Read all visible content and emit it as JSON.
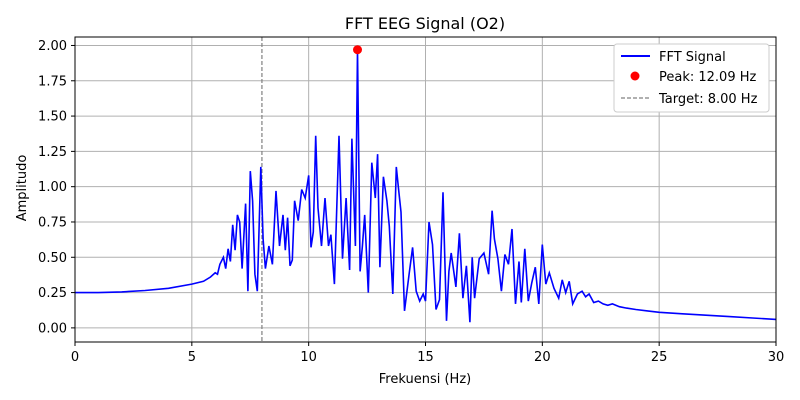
{
  "chart_data": {
    "type": "line",
    "title": "FFT EEG Signal (O2)",
    "xlabel": "Frekuensi (Hz)",
    "ylabel": "Amplitudo",
    "xlim": [
      0,
      30
    ],
    "ylim": [
      -0.1,
      2.06
    ],
    "xticks": [
      0,
      5,
      10,
      15,
      20,
      25,
      30
    ],
    "yticks": [
      0.0,
      0.25,
      0.5,
      0.75,
      1.0,
      1.25,
      1.5,
      1.75,
      2.0
    ],
    "xtick_labels": [
      "0",
      "5",
      "10",
      "15",
      "20",
      "25",
      "30"
    ],
    "ytick_labels": [
      "0.00",
      "0.25",
      "0.50",
      "0.75",
      "1.00",
      "1.25",
      "1.50",
      "1.75",
      "2.00"
    ],
    "grid": true,
    "legend_position": "top-right",
    "series": [
      {
        "name": "FFT Signal",
        "color": "#0000ff",
        "x": [
          0.0,
          1.0,
          2.0,
          3.0,
          4.0,
          5.0,
          5.5,
          5.8,
          6.0,
          6.1,
          6.2,
          6.35,
          6.45,
          6.55,
          6.65,
          6.75,
          6.85,
          6.95,
          7.05,
          7.15,
          7.3,
          7.4,
          7.5,
          7.6,
          7.7,
          7.8,
          7.95,
          8.05,
          8.15,
          8.3,
          8.45,
          8.6,
          8.75,
          8.9,
          9.0,
          9.1,
          9.2,
          9.3,
          9.4,
          9.55,
          9.7,
          9.85,
          10.0,
          10.1,
          10.2,
          10.3,
          10.4,
          10.55,
          10.7,
          10.85,
          10.95,
          11.1,
          11.3,
          11.45,
          11.6,
          11.75,
          11.85,
          12.0,
          12.09,
          12.2,
          12.3,
          12.4,
          12.55,
          12.7,
          12.85,
          12.95,
          13.05,
          13.2,
          13.35,
          13.45,
          13.6,
          13.75,
          13.85,
          13.95,
          14.1,
          14.3,
          14.45,
          14.6,
          14.75,
          14.9,
          15.0,
          15.15,
          15.3,
          15.45,
          15.6,
          15.75,
          15.9,
          16.0,
          16.1,
          16.3,
          16.45,
          16.6,
          16.75,
          16.9,
          17.0,
          17.1,
          17.3,
          17.5,
          17.7,
          17.85,
          17.95,
          18.1,
          18.25,
          18.4,
          18.55,
          18.7,
          18.85,
          19.0,
          19.1,
          19.25,
          19.4,
          19.55,
          19.7,
          19.85,
          20.0,
          20.15,
          20.3,
          20.5,
          20.7,
          20.85,
          21.0,
          21.15,
          21.3,
          21.5,
          21.7,
          21.85,
          22.0,
          22.2,
          22.4,
          22.6,
          22.8,
          23.0,
          23.3,
          23.6,
          24.0,
          24.5,
          25.0,
          26.0,
          27.0,
          28.0,
          29.0,
          30.0
        ],
        "y": [
          0.25,
          0.25,
          0.255,
          0.265,
          0.28,
          0.31,
          0.33,
          0.36,
          0.39,
          0.38,
          0.45,
          0.5,
          0.42,
          0.56,
          0.47,
          0.73,
          0.55,
          0.8,
          0.75,
          0.42,
          0.88,
          0.26,
          1.11,
          0.9,
          0.38,
          0.26,
          1.14,
          0.63,
          0.42,
          0.58,
          0.45,
          0.97,
          0.58,
          0.8,
          0.55,
          0.78,
          0.44,
          0.48,
          0.9,
          0.76,
          0.98,
          0.92,
          1.08,
          0.57,
          0.68,
          1.36,
          0.85,
          0.58,
          0.92,
          0.58,
          0.66,
          0.31,
          1.36,
          0.49,
          0.92,
          0.41,
          1.34,
          0.58,
          1.97,
          0.4,
          0.58,
          0.8,
          0.25,
          1.17,
          0.92,
          1.23,
          0.43,
          1.07,
          0.9,
          0.72,
          0.24,
          1.14,
          0.98,
          0.82,
          0.12,
          0.38,
          0.57,
          0.26,
          0.19,
          0.24,
          0.19,
          0.75,
          0.59,
          0.13,
          0.2,
          0.96,
          0.05,
          0.4,
          0.53,
          0.29,
          0.67,
          0.21,
          0.44,
          0.04,
          0.5,
          0.21,
          0.49,
          0.53,
          0.38,
          0.83,
          0.63,
          0.49,
          0.26,
          0.52,
          0.45,
          0.7,
          0.17,
          0.47,
          0.18,
          0.56,
          0.19,
          0.32,
          0.43,
          0.17,
          0.59,
          0.31,
          0.39,
          0.28,
          0.21,
          0.34,
          0.25,
          0.33,
          0.17,
          0.24,
          0.26,
          0.22,
          0.24,
          0.18,
          0.19,
          0.17,
          0.16,
          0.17,
          0.15,
          0.14,
          0.13,
          0.12,
          0.11,
          0.1,
          0.09,
          0.08,
          0.07,
          0.06
        ],
        "legend_label": "FFT Signal"
      }
    ],
    "peak": {
      "x": 12.09,
      "y": 1.97,
      "color": "#ff0000",
      "legend_label": "Peak: 12.09 Hz"
    },
    "target_line": {
      "x": 8.0,
      "color": "#808080",
      "legend_label": "Target: 8.00 Hz"
    }
  }
}
